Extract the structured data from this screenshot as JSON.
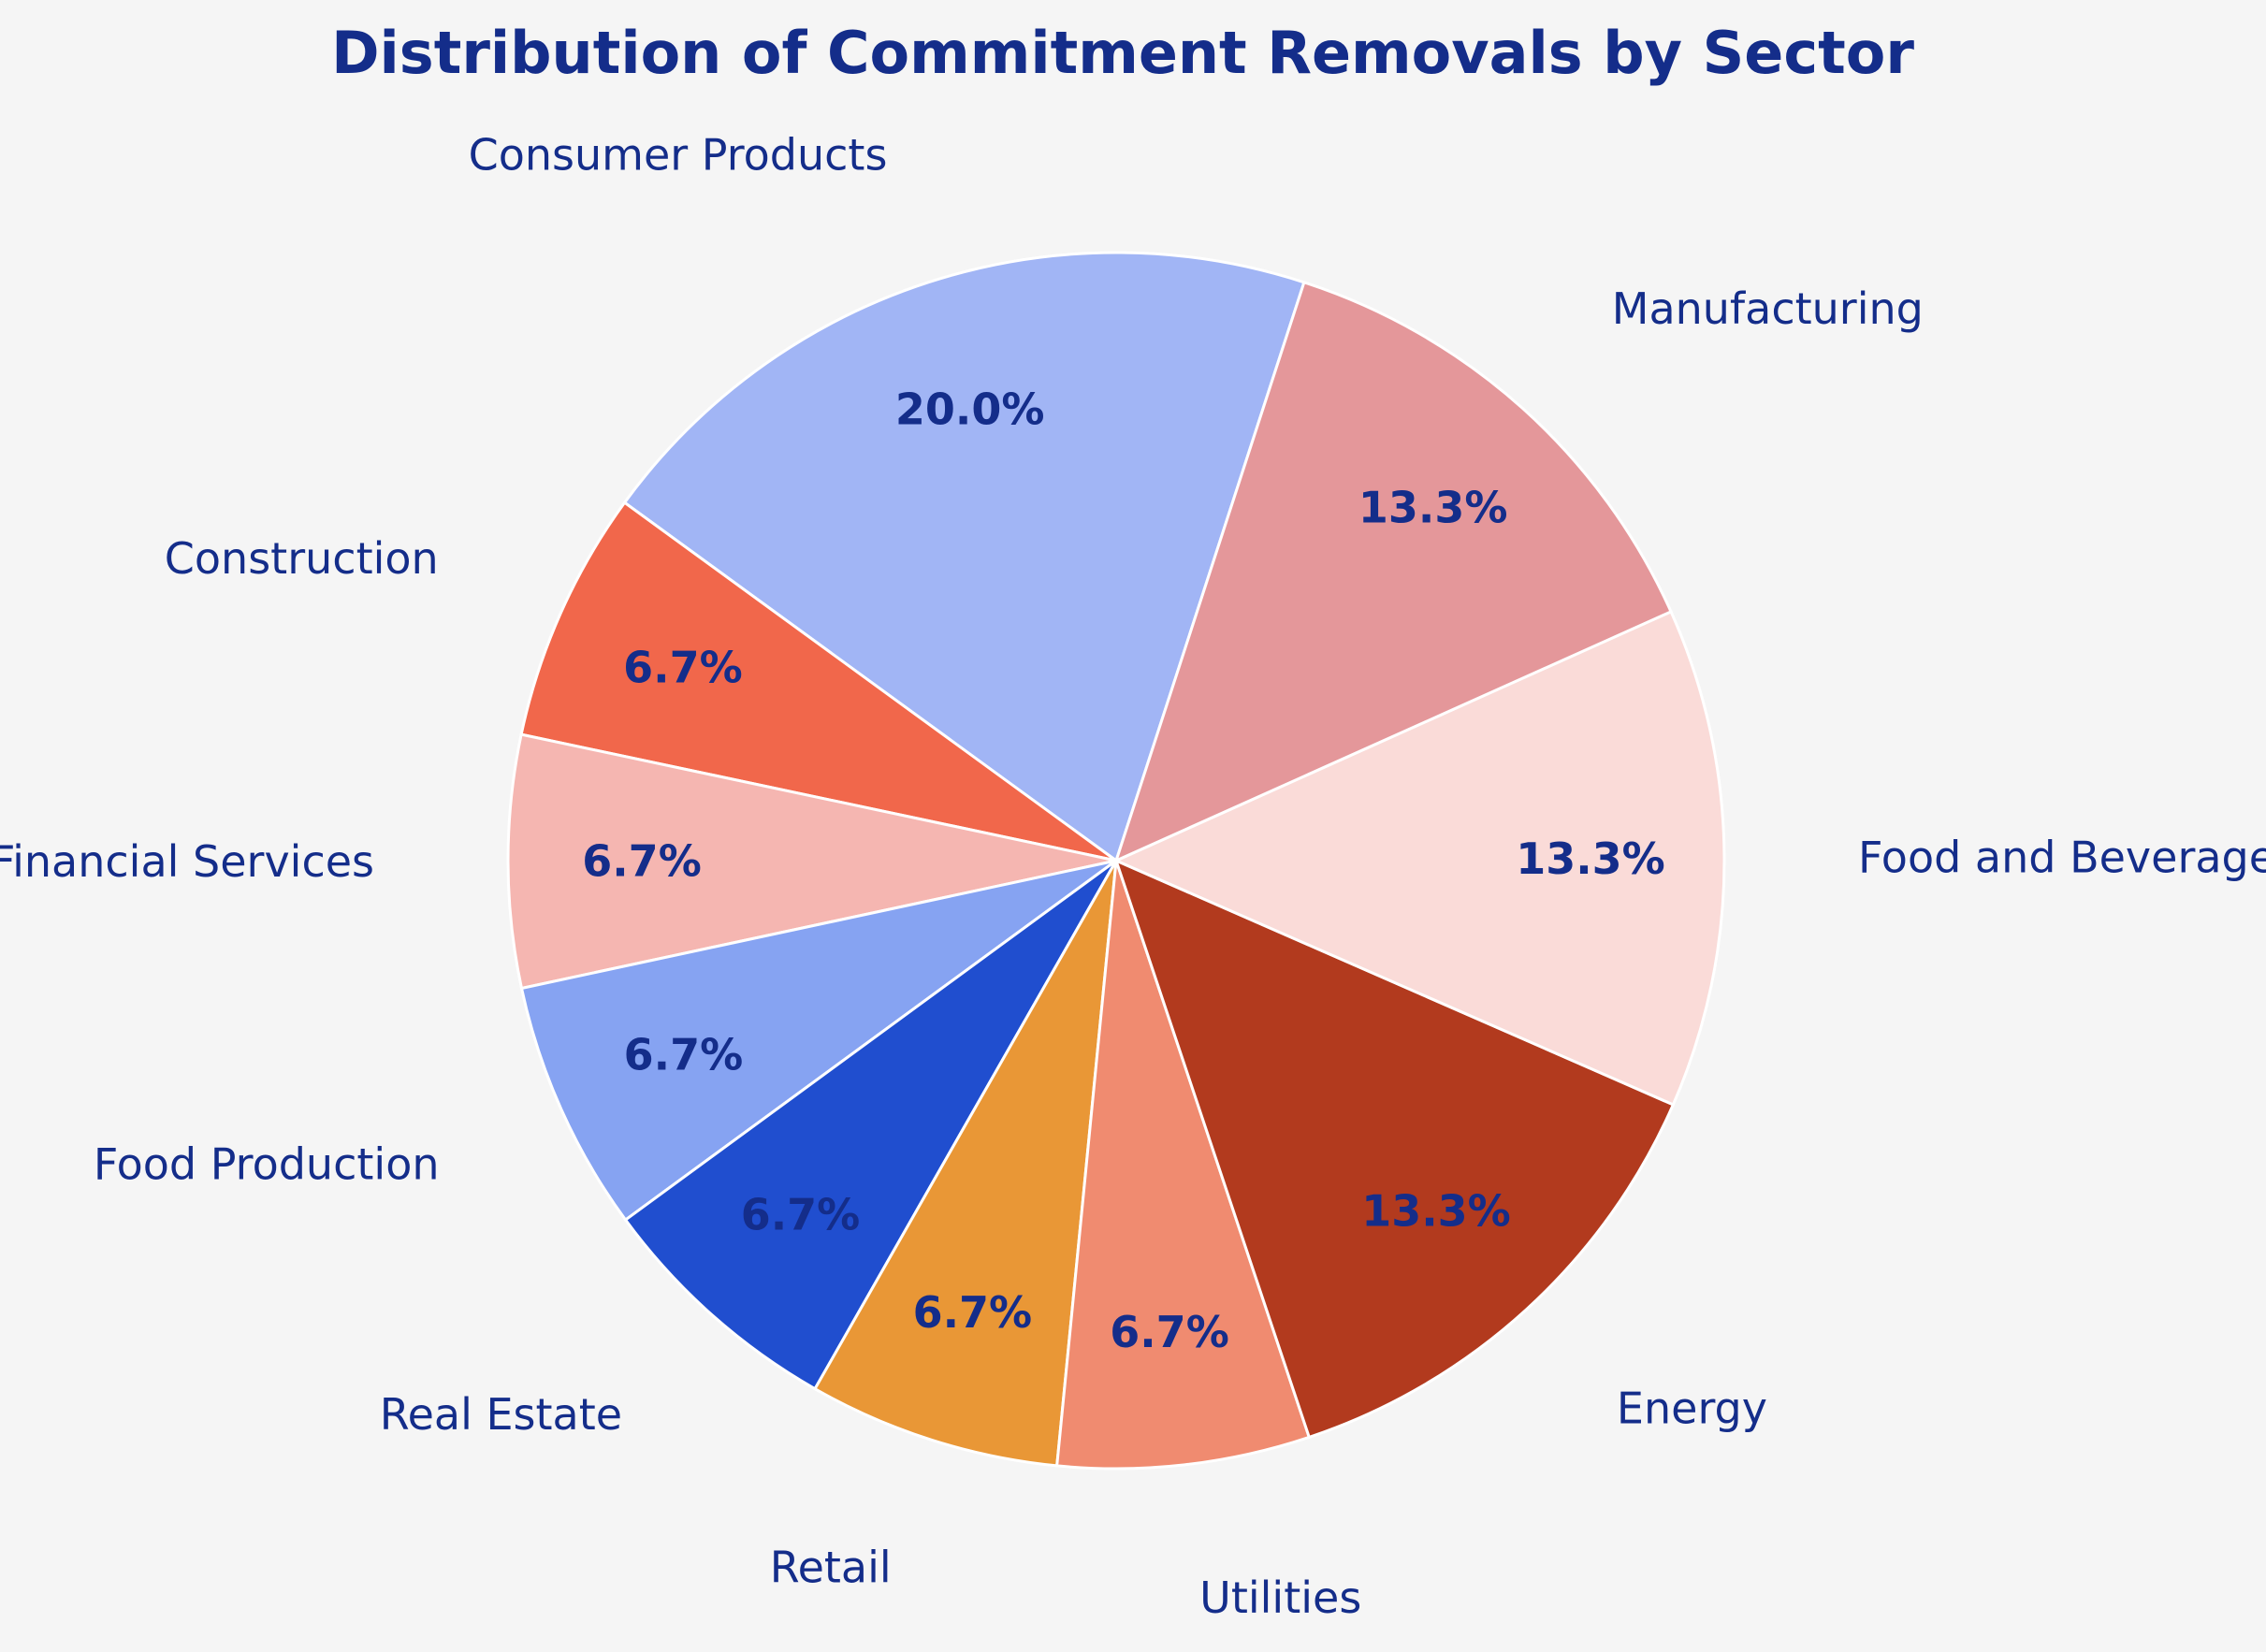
{
  "chart_data": {
    "type": "pie",
    "title": "Distribution of Commitment Removals by Sector",
    "start_angle_deg": 72,
    "direction": "counterclockwise",
    "slices": [
      {
        "label": "Consumer Products",
        "value": 20.0,
        "pct_label": "20.0%",
        "color": "#a1b5f5"
      },
      {
        "label": "Construction",
        "value": 6.7,
        "pct_label": "6.7%",
        "color": "#f1674b"
      },
      {
        "label": "Financial Services",
        "value": 6.7,
        "pct_label": "6.7%",
        "color": "#f5b6b1"
      },
      {
        "label": "Food Production",
        "value": 6.7,
        "pct_label": "6.7%",
        "color": "#86a3f2"
      },
      {
        "label": "Real Estate",
        "value": 6.7,
        "pct_label": "6.7%",
        "color": "#204ecf"
      },
      {
        "label": "Retail",
        "value": 6.7,
        "pct_label": "6.7%",
        "color": "#e99736"
      },
      {
        "label": "Utilities",
        "value": 6.7,
        "pct_label": "6.7%",
        "color": "#f08b70"
      },
      {
        "label": "Energy",
        "value": 13.3,
        "pct_label": "13.3%",
        "color": "#b23a1e"
      },
      {
        "label": "Food and Beverage",
        "value": 13.3,
        "pct_label": "13.3%",
        "color": "#fadbd8"
      },
      {
        "label": "Manufacturing",
        "value": 13.3,
        "pct_label": "13.3%",
        "color": "#e4979a"
      }
    ]
  }
}
